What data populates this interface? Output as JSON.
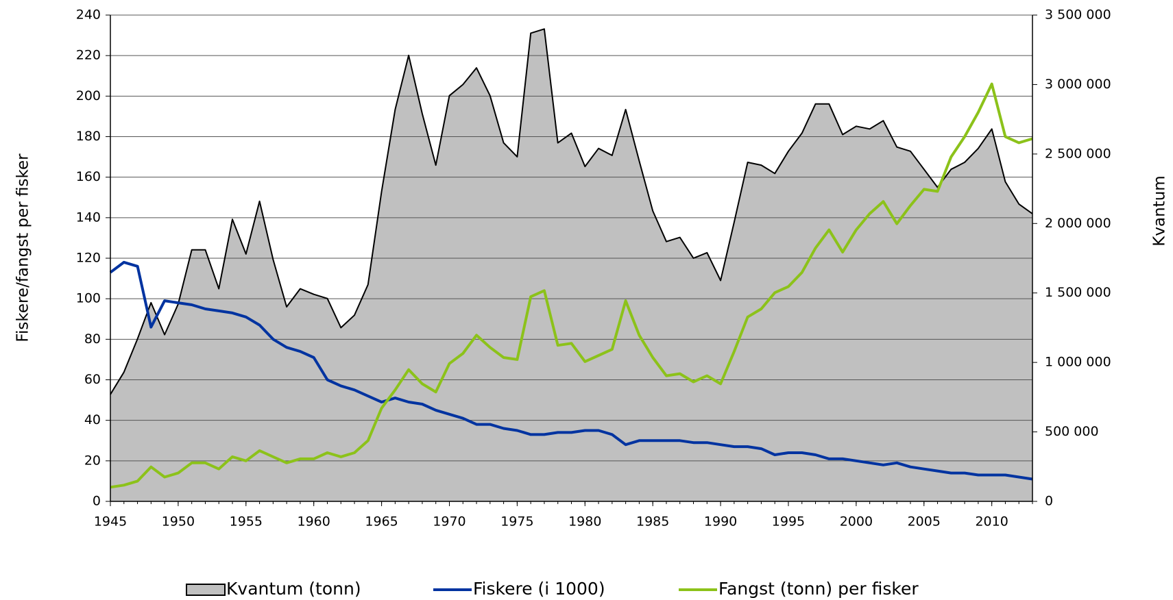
{
  "chart_data": {
    "type": "line",
    "ylabel": "Fiskere/fangst per fisker",
    "y2label": "Kvantum",
    "x": [
      1945,
      1946,
      1947,
      1948,
      1949,
      1950,
      1951,
      1952,
      1953,
      1954,
      1955,
      1956,
      1957,
      1958,
      1959,
      1960,
      1961,
      1962,
      1963,
      1964,
      1965,
      1966,
      1967,
      1968,
      1969,
      1970,
      1971,
      1972,
      1973,
      1974,
      1975,
      1976,
      1977,
      1978,
      1979,
      1980,
      1981,
      1982,
      1983,
      1984,
      1985,
      1986,
      1987,
      1988,
      1989,
      1990,
      1991,
      1992,
      1993,
      1994,
      1995,
      1996,
      1997,
      1998,
      1999,
      2000,
      2001,
      2002,
      2003,
      2004,
      2005,
      2006,
      2007,
      2008,
      2009,
      2010,
      2011,
      2012,
      2013
    ],
    "xlim": [
      1945,
      2013
    ],
    "xticks": [
      1945,
      1950,
      1955,
      1960,
      1965,
      1970,
      1975,
      1980,
      1985,
      1990,
      1995,
      2000,
      2005,
      2010
    ],
    "ylim": [
      0,
      240
    ],
    "yticks": [
      0,
      20,
      40,
      60,
      80,
      100,
      120,
      140,
      160,
      180,
      200,
      220,
      240
    ],
    "y2lim": [
      0,
      3500000
    ],
    "y2ticks": [
      0,
      {
        "value": 500000,
        "label": "500 000"
      },
      {
        "value": 1000000,
        "label": "1 000 000"
      },
      {
        "value": 1500000,
        "label": "1 500 000"
      },
      {
        "value": 2000000,
        "label": "2 000 000"
      },
      {
        "value": 2500000,
        "label": "2 500 000"
      },
      {
        "value": 3000000,
        "label": "3 000 000"
      },
      {
        "value": 3500000,
        "label": "3 500 000"
      }
    ],
    "grid": true,
    "legend": "bottom",
    "series": [
      {
        "name": "Kvantum (tonn)",
        "color": "#c0c0c0",
        "kind": "area",
        "axis": "y2",
        "values": [
          770000,
          930000,
          1170000,
          1430000,
          1200000,
          1420000,
          1810000,
          1810000,
          1530000,
          2030000,
          1780000,
          2160000,
          1740000,
          1400000,
          1530000,
          1490000,
          1460000,
          1250000,
          1340000,
          1560000,
          2230000,
          2820000,
          3210000,
          2790000,
          2420000,
          2920000,
          3000000,
          3120000,
          2920000,
          2580000,
          2480000,
          3370000,
          3400000,
          2580000,
          2650000,
          2410000,
          2540000,
          2490000,
          2820000,
          2450000,
          2090000,
          1870000,
          1900000,
          1750000,
          1790000,
          1590000,
          2010000,
          2440000,
          2420000,
          2360000,
          2520000,
          2650000,
          2860000,
          2860000,
          2640000,
          2700000,
          2680000,
          2740000,
          2550000,
          2520000,
          2390000,
          2260000,
          2390000,
          2440000,
          2540000,
          2680000,
          2300000,
          2140000,
          2070000
        ]
      },
      {
        "name": "Fiskere (i 1000)",
        "color": "#0033a0",
        "kind": "line",
        "values": [
          113,
          118,
          116,
          86,
          99,
          98,
          97,
          95,
          94,
          93,
          91,
          87,
          80,
          76,
          74,
          71,
          60,
          57,
          55,
          52,
          49,
          51,
          49,
          48,
          45,
          43,
          41,
          38,
          38,
          36,
          35,
          33,
          33,
          34,
          34,
          35,
          35,
          33,
          28,
          30,
          30,
          30,
          30,
          29,
          29,
          28,
          27,
          27,
          26,
          23,
          24,
          24,
          23,
          21,
          21,
          20,
          19,
          18,
          19,
          17,
          16,
          15,
          14,
          14,
          13,
          13,
          13,
          12,
          11
        ]
      },
      {
        "name": "Fangst (tonn) per fisker",
        "color": "#8cc21a",
        "kind": "line",
        "values": [
          7,
          8,
          10,
          17,
          12,
          14,
          19,
          19,
          16,
          22,
          20,
          25,
          22,
          19,
          21,
          21,
          24,
          22,
          24,
          30,
          46,
          55,
          65,
          58,
          54,
          68,
          73,
          82,
          76,
          71,
          70,
          101,
          104,
          77,
          78,
          69,
          72,
          75,
          99,
          82,
          71,
          62,
          63,
          59,
          62,
          58,
          74,
          91,
          95,
          103,
          106,
          113,
          125,
          134,
          123,
          134,
          142,
          148,
          137,
          146,
          154,
          153,
          170,
          180,
          192,
          206,
          180,
          177,
          179
        ]
      }
    ]
  }
}
